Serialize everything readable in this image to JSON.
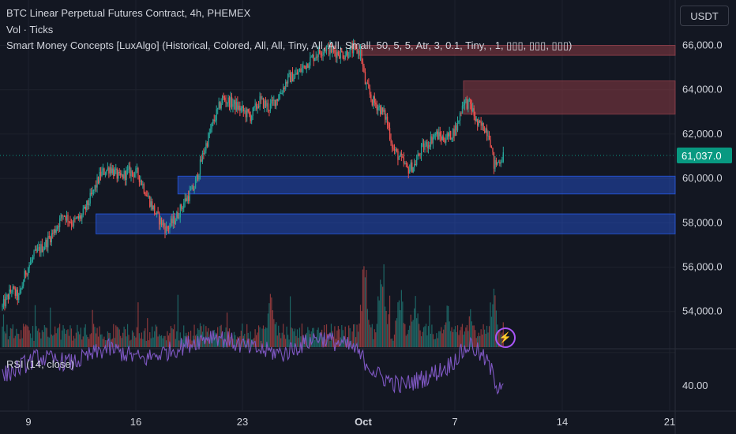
{
  "header": {
    "symbol_line": "BTC Linear Perpetual Futures Contract, 4h, PHEMEX",
    "volume_line": "Vol · Ticks",
    "indicator_line": "Smart Money Concepts [LuxAlgo] (Historical, Colored, All, All, Tiny, All, All, Small, 50, 5, 5, Atr, 3, 0.1, Tiny, , 1, ▯▯▯, ▯▯▯, ▯▯▯)"
  },
  "currency_button": "USDT",
  "rsi_label": "RSI (14, close)",
  "colors": {
    "up": "#26a69a",
    "down": "#ef5350",
    "rsi": "#7e57c2",
    "supply_zone": "#8a3a44",
    "demand_zone": "#2962ff",
    "price_badge": "#089981"
  },
  "chart_data": {
    "type": "candlestick",
    "title": "BTC Linear Perpetual Futures Contract, 4h, PHEMEX",
    "x_ticks": [
      "9",
      "16",
      "23",
      "Oct",
      "7",
      "14",
      "21"
    ],
    "y_ticks": [
      "54,000.0",
      "56,000.0",
      "58,000.0",
      "60,000.0",
      "62,000.0",
      "64,000.0",
      "66,000.0"
    ],
    "rsi_ticks": [
      "40.00"
    ],
    "ylim": [
      52000,
      67500
    ],
    "last_price": 61037,
    "last_price_label": "61,037.0",
    "grid": true,
    "anchors": [
      [
        0,
        54200
      ],
      [
        8,
        55000
      ],
      [
        14,
        54600
      ],
      [
        20,
        55800
      ],
      [
        28,
        56600
      ],
      [
        36,
        57000
      ],
      [
        44,
        57600
      ],
      [
        52,
        58400
      ],
      [
        60,
        58000
      ],
      [
        68,
        58300
      ],
      [
        76,
        59200
      ],
      [
        84,
        60200
      ],
      [
        92,
        60500
      ],
      [
        100,
        60000
      ],
      [
        108,
        60300
      ],
      [
        116,
        60200
      ],
      [
        124,
        59200
      ],
      [
        132,
        58300
      ],
      [
        140,
        57700
      ],
      [
        148,
        58200
      ],
      [
        156,
        59000
      ],
      [
        164,
        59600
      ],
      [
        172,
        61200
      ],
      [
        180,
        62500
      ],
      [
        188,
        63600
      ],
      [
        196,
        63400
      ],
      [
        204,
        63100
      ],
      [
        212,
        62800
      ],
      [
        220,
        63500
      ],
      [
        228,
        63200
      ],
      [
        236,
        63700
      ],
      [
        244,
        64500
      ],
      [
        252,
        64700
      ],
      [
        260,
        65200
      ],
      [
        268,
        65600
      ],
      [
        276,
        65900
      ],
      [
        284,
        65700
      ],
      [
        292,
        65600
      ],
      [
        300,
        65800
      ],
      [
        306,
        65700
      ],
      [
        310,
        64300
      ],
      [
        316,
        63500
      ],
      [
        322,
        63200
      ],
      [
        328,
        62700
      ],
      [
        334,
        61300
      ],
      [
        340,
        60900
      ],
      [
        346,
        60400
      ],
      [
        352,
        60600
      ],
      [
        358,
        61300
      ],
      [
        364,
        61600
      ],
      [
        370,
        62000
      ],
      [
        376,
        61800
      ],
      [
        382,
        61900
      ],
      [
        388,
        62300
      ],
      [
        394,
        63500
      ],
      [
        400,
        63300
      ],
      [
        406,
        62400
      ],
      [
        412,
        62300
      ],
      [
        416,
        62000
      ],
      [
        420,
        60600
      ],
      [
        423,
        60700
      ],
      [
        428,
        61000
      ]
    ],
    "supply_zones": [
      {
        "from_idx": 306,
        "to_idx": 430,
        "low": 65550,
        "high": 66000
      },
      {
        "from_idx": 394,
        "to_idx": 430,
        "low": 62900,
        "high": 64400
      }
    ],
    "demand_zones": [
      {
        "from_idx": 150,
        "to_idx": 430,
        "low": 59300,
        "high": 60100
      },
      {
        "from_idx": 80,
        "to_idx": 430,
        "low": 57500,
        "high": 58400
      }
    ],
    "rsi_anchors": [
      [
        0,
        45
      ],
      [
        30,
        55
      ],
      [
        60,
        52
      ],
      [
        90,
        60
      ],
      [
        120,
        54
      ],
      [
        150,
        60
      ],
      [
        180,
        67
      ],
      [
        210,
        60
      ],
      [
        240,
        57
      ],
      [
        270,
        66
      ],
      [
        300,
        60
      ],
      [
        320,
        46
      ],
      [
        340,
        40
      ],
      [
        360,
        44
      ],
      [
        380,
        50
      ],
      [
        400,
        62
      ],
      [
        415,
        52
      ],
      [
        423,
        40
      ],
      [
        428,
        43
      ]
    ],
    "volume_spikes": [
      [
        230,
        90
      ],
      [
        310,
        120
      ],
      [
        324,
        110
      ],
      [
        340,
        85
      ],
      [
        352,
        70
      ],
      [
        380,
        60
      ],
      [
        400,
        45
      ],
      [
        420,
        70
      ]
    ]
  }
}
